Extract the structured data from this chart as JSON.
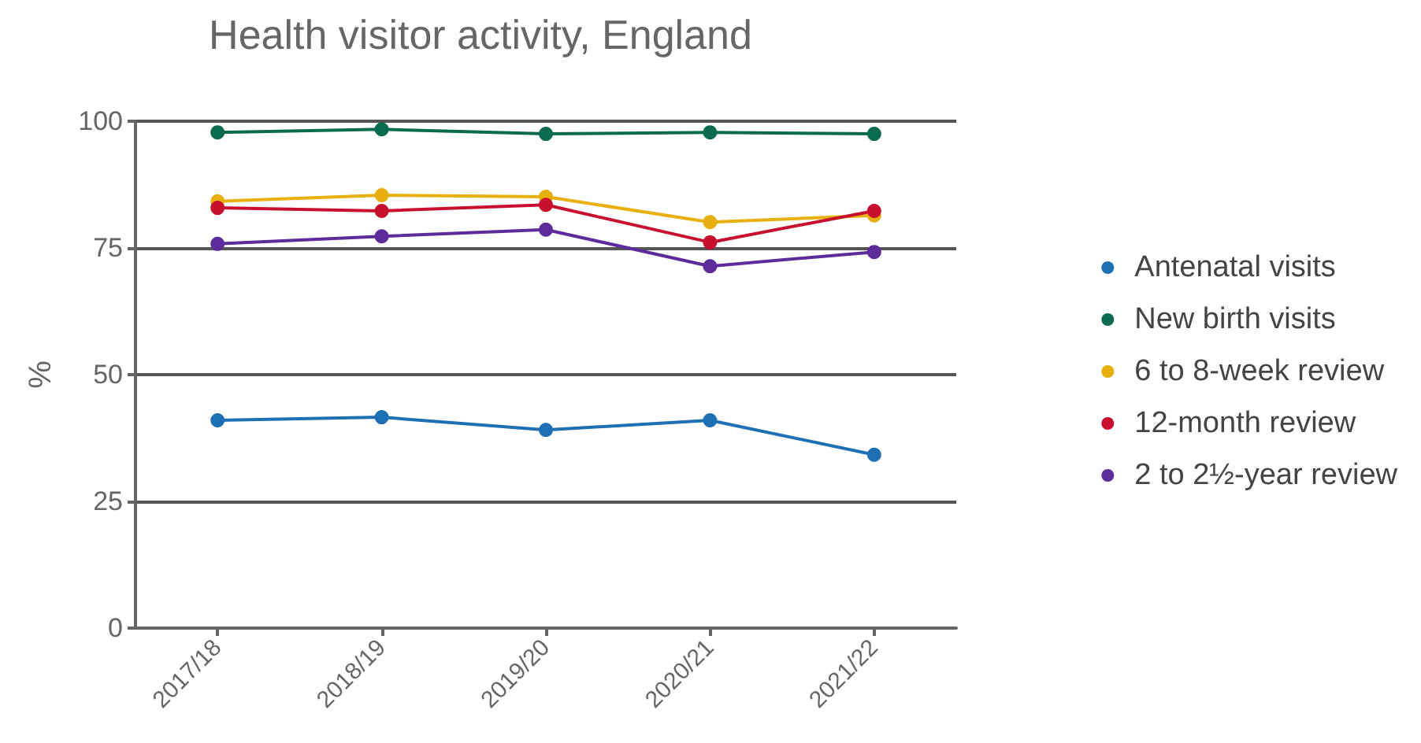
{
  "chart_data": {
    "type": "line",
    "title": "Health visitor activity, England",
    "ylabel": "%",
    "categories": [
      "2017/18",
      "2018/19",
      "2019/20",
      "2020/21",
      "2021/22"
    ],
    "series": [
      {
        "name": "Antenatal visits",
        "color": "#1f6fb4",
        "values": [
          41.0,
          41.6,
          39.1,
          41.0,
          34.2
        ]
      },
      {
        "name": "New birth visits",
        "color": "#0b6b4f",
        "values": [
          97.8,
          98.4,
          97.5,
          97.8,
          97.5
        ]
      },
      {
        "name": "6 to 8-week review",
        "color": "#e8b00f",
        "values": [
          84.2,
          85.4,
          85.1,
          80.1,
          81.4
        ]
      },
      {
        "name": "12-month review",
        "color": "#c8102e",
        "values": [
          82.9,
          82.3,
          83.5,
          76.1,
          82.3
        ]
      },
      {
        "name": "2 to 2½-year review",
        "color": "#5b2c9a",
        "values": [
          75.8,
          77.3,
          78.6,
          71.4,
          74.2
        ]
      }
    ],
    "ylim": [
      0,
      100
    ],
    "yticks": [
      0,
      25,
      50,
      75,
      100
    ],
    "grid": "y",
    "legend": "right",
    "marker": "circle",
    "line_style": "solid"
  }
}
